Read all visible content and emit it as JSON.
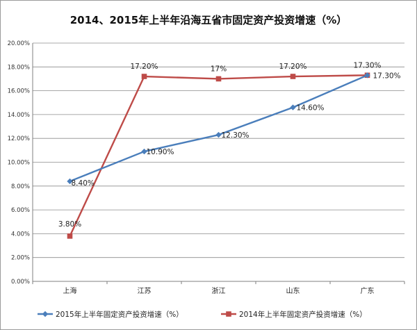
{
  "chart_data": {
    "type": "line",
    "title": "2014、2015年上半年沿海五省市固定资产投资增速（%）",
    "categories": [
      "上海",
      "江苏",
      "浙江",
      "山东",
      "广东"
    ],
    "ylim": [
      0,
      20
    ],
    "y_ticks": [
      "0.00%",
      "2.00%",
      "4.00%",
      "6.00%",
      "8.00%",
      "10.00%",
      "12.00%",
      "14.00%",
      "16.00%",
      "18.00%",
      "20.00%"
    ],
    "grid": true,
    "legend_position": "bottom",
    "series": [
      {
        "name": "2015年上半年固定资产投资增速（%）",
        "color": "#4a7ebb",
        "marker": "diamond",
        "values": [
          8.4,
          10.9,
          12.3,
          14.6,
          17.3
        ],
        "labels": [
          "8.40%",
          "10.90%",
          "12.30%",
          "14.60%",
          "17.30%"
        ]
      },
      {
        "name": "2014年上半年固定资产投资增速（%）",
        "color": "#be4b48",
        "marker": "square",
        "values": [
          3.8,
          17.2,
          17.0,
          17.2,
          17.3
        ],
        "labels": [
          "3.80%",
          "17.20%",
          "17%",
          "17.20%",
          "17.30%"
        ]
      }
    ]
  }
}
